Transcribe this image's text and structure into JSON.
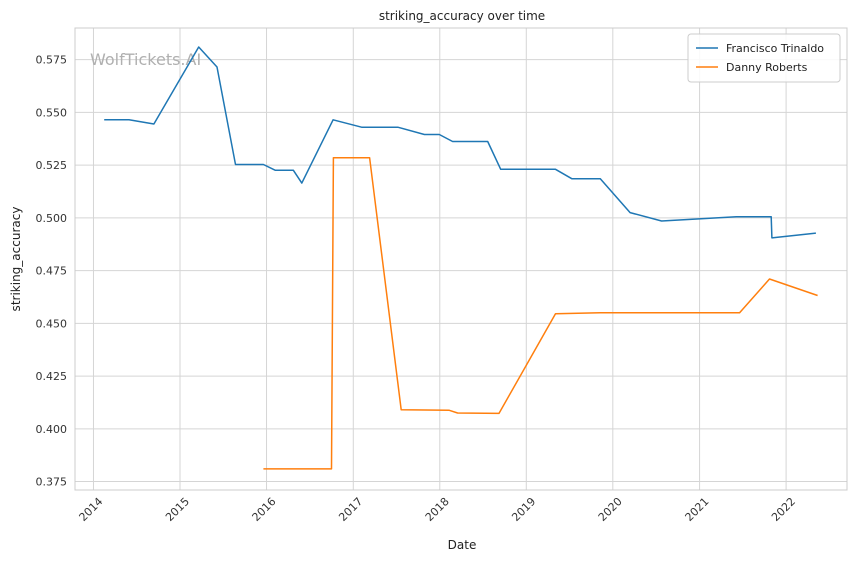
{
  "chart_data": {
    "type": "line",
    "title": "striking_accuracy over time",
    "xlabel": "Date",
    "ylabel": "striking_accuracy",
    "watermark": "WolfTickets.AI",
    "grid": true,
    "legend_position": "top-right",
    "xlim": [
      "2013-10-15",
      "2022-09-15"
    ],
    "ylim": [
      0.371,
      0.59
    ],
    "x_ticks": [
      "2014-01-01",
      "2015-01-01",
      "2016-01-01",
      "2017-01-01",
      "2018-01-01",
      "2019-01-01",
      "2020-01-01",
      "2021-01-01",
      "2022-01-01"
    ],
    "x_tick_labels": [
      "2014",
      "2015",
      "2016",
      "2017",
      "2018",
      "2019",
      "2020",
      "2021",
      "2022"
    ],
    "y_ticks": [
      0.375,
      0.4,
      0.425,
      0.45,
      0.475,
      0.5,
      0.525,
      0.55,
      0.575
    ],
    "y_tick_labels": [
      "0.375",
      "0.400",
      "0.425",
      "0.450",
      "0.475",
      "0.500",
      "0.525",
      "0.550",
      "0.575"
    ],
    "series": [
      {
        "name": "Francisco Trinaldo",
        "color": "#1f77b4",
        "points": [
          [
            "2014-02-15",
            0.5465
          ],
          [
            "2014-05-31",
            0.5465
          ],
          [
            "2014-09-13",
            0.5445
          ],
          [
            "2015-03-21",
            0.581
          ],
          [
            "2015-06-06",
            0.5715
          ],
          [
            "2015-08-23",
            0.5253
          ],
          [
            "2015-12-19",
            0.5253
          ],
          [
            "2016-02-06",
            0.5226
          ],
          [
            "2016-04-23",
            0.5226
          ],
          [
            "2016-05-29",
            0.5165
          ],
          [
            "2016-10-08",
            0.5465
          ],
          [
            "2017-02-05",
            0.543
          ],
          [
            "2017-07-08",
            0.543
          ],
          [
            "2017-10-28",
            0.5395
          ],
          [
            "2017-12-30",
            0.5395
          ],
          [
            "2018-02-24",
            0.5362
          ],
          [
            "2018-07-22",
            0.5362
          ],
          [
            "2018-09-15",
            0.523
          ],
          [
            "2019-05-04",
            0.523
          ],
          [
            "2019-07-13",
            0.5185
          ],
          [
            "2019-11-09",
            0.5185
          ],
          [
            "2020-03-14",
            0.5025
          ],
          [
            "2020-07-25",
            0.4985
          ],
          [
            "2021-06-05",
            0.5005
          ],
          [
            "2021-10-30",
            0.5005
          ],
          [
            "2021-11-02",
            0.4905
          ],
          [
            "2022-05-07",
            0.4928
          ]
        ]
      },
      {
        "name": "Danny Roberts",
        "color": "#ff7f0e",
        "points": [
          [
            "2015-12-19",
            0.381
          ],
          [
            "2016-10-01",
            0.381
          ],
          [
            "2016-10-09",
            0.5285
          ],
          [
            "2017-03-11",
            0.5285
          ],
          [
            "2017-07-22",
            0.409
          ],
          [
            "2018-02-10",
            0.4088
          ],
          [
            "2018-03-17",
            0.4075
          ],
          [
            "2018-09-08",
            0.4073
          ],
          [
            "2019-05-04",
            0.4545
          ],
          [
            "2019-11-09",
            0.455
          ],
          [
            "2021-06-19",
            0.455
          ],
          [
            "2021-10-23",
            0.471
          ],
          [
            "2022-05-14",
            0.4632
          ]
        ]
      }
    ]
  }
}
